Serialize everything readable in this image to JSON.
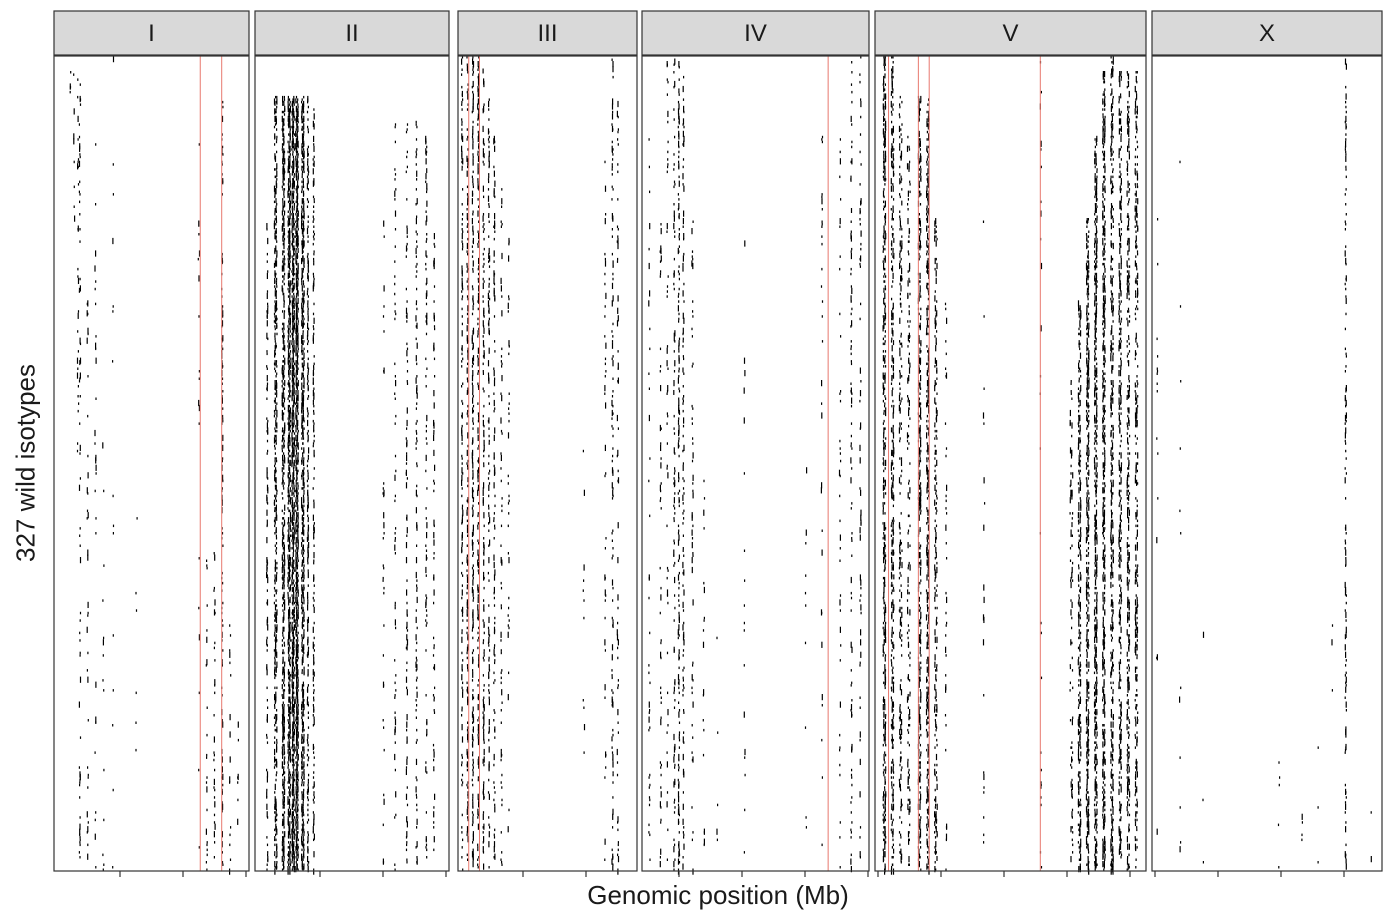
{
  "chart_data": {
    "type": "heatmap",
    "xlabel": "Genomic position (Mb)",
    "ylabel": "327 wild isotypes",
    "facets": [
      {
        "name": "I",
        "red_lines": [
          0.75,
          0.86
        ],
        "bands": [
          {
            "x": 0.08,
            "w": 0.005,
            "d": 0.25,
            "r": [
              0.0,
              0.05
            ]
          },
          {
            "x": 0.1,
            "w": 0.005,
            "d": 0.2,
            "r": [
              0.0,
              0.2
            ]
          },
          {
            "x": 0.12,
            "w": 0.005,
            "d": 0.2,
            "r": [
              0.0,
              0.5
            ]
          },
          {
            "x": 0.13,
            "w": 0.005,
            "d": 0.18,
            "r": [
              0.02,
              1.0
            ]
          },
          {
            "x": 0.17,
            "w": 0.004,
            "d": 0.12,
            "r": [
              0.3,
              1.0
            ]
          },
          {
            "x": 0.21,
            "w": 0.003,
            "d": 0.08,
            "r": [
              0.05,
              1.0
            ]
          },
          {
            "x": 0.25,
            "w": 0.003,
            "d": 0.06,
            "r": [
              0.4,
              1.0
            ]
          },
          {
            "x": 0.3,
            "w": 0.003,
            "d": 0.04,
            "r": [
              0.0,
              1.0
            ]
          },
          {
            "x": 0.42,
            "w": 0.003,
            "d": 0.03,
            "r": [
              0.5,
              1.0
            ]
          },
          {
            "x": 0.74,
            "w": 0.004,
            "d": 0.08,
            "r": [
              0.1,
              1.0
            ]
          },
          {
            "x": 0.78,
            "w": 0.005,
            "d": 0.18,
            "r": [
              0.6,
              1.0
            ]
          },
          {
            "x": 0.82,
            "w": 0.005,
            "d": 0.25,
            "r": [
              0.6,
              1.0
            ]
          },
          {
            "x": 0.86,
            "w": 0.005,
            "d": 0.3,
            "r": [
              0.05,
              1.0
            ]
          },
          {
            "x": 0.9,
            "w": 0.004,
            "d": 0.15,
            "r": [
              0.7,
              1.0
            ]
          },
          {
            "x": 0.94,
            "w": 0.004,
            "d": 0.12,
            "r": [
              0.8,
              1.0
            ]
          }
        ]
      },
      {
        "name": "II",
        "red_lines": [],
        "bands": [
          {
            "x": 0.06,
            "w": 0.01,
            "d": 0.35,
            "r": [
              0.2,
              1.0
            ]
          },
          {
            "x": 0.1,
            "w": 0.015,
            "d": 0.55,
            "r": [
              0.05,
              1.0
            ]
          },
          {
            "x": 0.14,
            "w": 0.015,
            "d": 0.65,
            "r": [
              0.05,
              1.0
            ]
          },
          {
            "x": 0.17,
            "w": 0.015,
            "d": 0.8,
            "r": [
              0.05,
              1.0
            ]
          },
          {
            "x": 0.19,
            "w": 0.015,
            "d": 0.85,
            "r": [
              0.05,
              1.0
            ]
          },
          {
            "x": 0.21,
            "w": 0.015,
            "d": 0.9,
            "r": [
              0.05,
              1.0
            ]
          },
          {
            "x": 0.24,
            "w": 0.012,
            "d": 0.75,
            "r": [
              0.05,
              1.0
            ]
          },
          {
            "x": 0.27,
            "w": 0.01,
            "d": 0.6,
            "r": [
              0.05,
              1.0
            ]
          },
          {
            "x": 0.3,
            "w": 0.01,
            "d": 0.45,
            "r": [
              0.05,
              1.0
            ]
          },
          {
            "x": 0.66,
            "w": 0.006,
            "d": 0.15,
            "r": [
              0.2,
              1.0
            ]
          },
          {
            "x": 0.72,
            "w": 0.006,
            "d": 0.2,
            "r": [
              0.08,
              1.0
            ]
          },
          {
            "x": 0.78,
            "w": 0.006,
            "d": 0.3,
            "r": [
              0.08,
              1.0
            ]
          },
          {
            "x": 0.83,
            "w": 0.006,
            "d": 0.3,
            "r": [
              0.08,
              1.0
            ]
          },
          {
            "x": 0.88,
            "w": 0.006,
            "d": 0.25,
            "r": [
              0.1,
              1.0
            ]
          },
          {
            "x": 0.92,
            "w": 0.005,
            "d": 0.2,
            "r": [
              0.2,
              1.0
            ]
          }
        ]
      },
      {
        "name": "III",
        "red_lines": [
          0.06,
          0.12
        ],
        "bands": [
          {
            "x": 0.02,
            "w": 0.008,
            "d": 0.4,
            "r": [
              0.0,
              1.0
            ]
          },
          {
            "x": 0.05,
            "w": 0.008,
            "d": 0.5,
            "r": [
              0.0,
              1.0
            ]
          },
          {
            "x": 0.08,
            "w": 0.008,
            "d": 0.55,
            "r": [
              0.0,
              1.0
            ]
          },
          {
            "x": 0.11,
            "w": 0.008,
            "d": 0.5,
            "r": [
              0.0,
              1.0
            ]
          },
          {
            "x": 0.14,
            "w": 0.007,
            "d": 0.45,
            "r": [
              0.0,
              1.0
            ]
          },
          {
            "x": 0.17,
            "w": 0.006,
            "d": 0.4,
            "r": [
              0.05,
              1.0
            ]
          },
          {
            "x": 0.2,
            "w": 0.006,
            "d": 0.3,
            "r": [
              0.1,
              1.0
            ]
          },
          {
            "x": 0.24,
            "w": 0.005,
            "d": 0.2,
            "r": [
              0.15,
              1.0
            ]
          },
          {
            "x": 0.28,
            "w": 0.004,
            "d": 0.12,
            "r": [
              0.2,
              1.0
            ]
          },
          {
            "x": 0.7,
            "w": 0.004,
            "d": 0.08,
            "r": [
              0.4,
              1.0
            ]
          },
          {
            "x": 0.82,
            "w": 0.004,
            "d": 0.12,
            "r": [
              0.1,
              1.0
            ]
          },
          {
            "x": 0.86,
            "w": 0.005,
            "d": 0.35,
            "r": [
              0.0,
              1.0
            ]
          },
          {
            "x": 0.89,
            "w": 0.004,
            "d": 0.2,
            "r": [
              0.05,
              1.0
            ]
          }
        ]
      },
      {
        "name": "IV",
        "red_lines": [
          0.82
        ],
        "bands": [
          {
            "x": 0.03,
            "w": 0.004,
            "d": 0.12,
            "r": [
              0.1,
              1.0
            ]
          },
          {
            "x": 0.08,
            "w": 0.004,
            "d": 0.18,
            "r": [
              0.2,
              1.0
            ]
          },
          {
            "x": 0.11,
            "w": 0.004,
            "d": 0.15,
            "r": [
              0.0,
              1.0
            ]
          },
          {
            "x": 0.14,
            "w": 0.005,
            "d": 0.3,
            "r": [
              0.0,
              1.0
            ]
          },
          {
            "x": 0.16,
            "w": 0.005,
            "d": 0.45,
            "r": [
              0.0,
              1.0
            ]
          },
          {
            "x": 0.18,
            "w": 0.005,
            "d": 0.3,
            "r": [
              0.0,
              1.0
            ]
          },
          {
            "x": 0.22,
            "w": 0.004,
            "d": 0.15,
            "r": [
              0.2,
              1.0
            ]
          },
          {
            "x": 0.27,
            "w": 0.004,
            "d": 0.12,
            "r": [
              0.5,
              1.0
            ]
          },
          {
            "x": 0.33,
            "w": 0.004,
            "d": 0.08,
            "r": [
              0.7,
              1.0
            ]
          },
          {
            "x": 0.45,
            "w": 0.003,
            "d": 0.05,
            "r": [
              0.2,
              1.0
            ]
          },
          {
            "x": 0.72,
            "w": 0.004,
            "d": 0.08,
            "r": [
              0.5,
              1.0
            ]
          },
          {
            "x": 0.79,
            "w": 0.004,
            "d": 0.12,
            "r": [
              0.1,
              1.0
            ]
          },
          {
            "x": 0.87,
            "w": 0.004,
            "d": 0.18,
            "r": [
              0.1,
              1.0
            ]
          },
          {
            "x": 0.92,
            "w": 0.004,
            "d": 0.25,
            "r": [
              0.0,
              1.0
            ]
          },
          {
            "x": 0.96,
            "w": 0.004,
            "d": 0.2,
            "r": [
              0.0,
              1.0
            ]
          }
        ]
      },
      {
        "name": "V",
        "red_lines": [
          0.05,
          0.16,
          0.2,
          0.61
        ],
        "bands": [
          {
            "x": 0.03,
            "w": 0.01,
            "d": 0.55,
            "r": [
              0.0,
              1.0
            ]
          },
          {
            "x": 0.06,
            "w": 0.01,
            "d": 0.45,
            "r": [
              0.0,
              1.0
            ]
          },
          {
            "x": 0.09,
            "w": 0.008,
            "d": 0.3,
            "r": [
              0.05,
              1.0
            ]
          },
          {
            "x": 0.12,
            "w": 0.008,
            "d": 0.25,
            "r": [
              0.1,
              1.0
            ]
          },
          {
            "x": 0.16,
            "w": 0.01,
            "d": 0.45,
            "r": [
              0.05,
              1.0
            ]
          },
          {
            "x": 0.19,
            "w": 0.01,
            "d": 0.5,
            "r": [
              0.05,
              1.0
            ]
          },
          {
            "x": 0.22,
            "w": 0.008,
            "d": 0.3,
            "r": [
              0.2,
              1.0
            ]
          },
          {
            "x": 0.26,
            "w": 0.006,
            "d": 0.15,
            "r": [
              0.3,
              1.0
            ]
          },
          {
            "x": 0.4,
            "w": 0.004,
            "d": 0.08,
            "r": [
              0.2,
              1.0
            ]
          },
          {
            "x": 0.61,
            "w": 0.004,
            "d": 0.06,
            "r": [
              0.0,
              1.0
            ]
          },
          {
            "x": 0.72,
            "w": 0.008,
            "d": 0.25,
            "r": [
              0.4,
              1.0
            ]
          },
          {
            "x": 0.75,
            "w": 0.01,
            "d": 0.5,
            "r": [
              0.3,
              1.0
            ]
          },
          {
            "x": 0.78,
            "w": 0.012,
            "d": 0.6,
            "r": [
              0.2,
              1.0
            ]
          },
          {
            "x": 0.81,
            "w": 0.012,
            "d": 0.65,
            "r": [
              0.1,
              1.0
            ]
          },
          {
            "x": 0.84,
            "w": 0.012,
            "d": 0.6,
            "r": [
              0.02,
              1.0
            ]
          },
          {
            "x": 0.87,
            "w": 0.01,
            "d": 0.5,
            "r": [
              0.0,
              1.0
            ]
          },
          {
            "x": 0.9,
            "w": 0.01,
            "d": 0.45,
            "r": [
              0.02,
              1.0
            ]
          },
          {
            "x": 0.93,
            "w": 0.01,
            "d": 0.4,
            "r": [
              0.02,
              1.0
            ]
          },
          {
            "x": 0.96,
            "w": 0.01,
            "d": 0.35,
            "r": [
              0.02,
              1.0
            ]
          }
        ]
      },
      {
        "name": "X",
        "red_lines": [],
        "bands": [
          {
            "x": 0.02,
            "w": 0.004,
            "d": 0.06,
            "r": [
              0.2,
              1.0
            ]
          },
          {
            "x": 0.12,
            "w": 0.004,
            "d": 0.05,
            "r": [
              0.05,
              1.0
            ]
          },
          {
            "x": 0.22,
            "w": 0.003,
            "d": 0.04,
            "r": [
              0.7,
              1.0
            ]
          },
          {
            "x": 0.36,
            "w": 0.003,
            "d": 0.04,
            "r": [
              0.8,
              1.0
            ]
          },
          {
            "x": 0.45,
            "w": 0.003,
            "d": 0.04,
            "r": [
              0.85,
              1.0
            ]
          },
          {
            "x": 0.55,
            "w": 0.003,
            "d": 0.04,
            "r": [
              0.85,
              1.0
            ]
          },
          {
            "x": 0.65,
            "w": 0.003,
            "d": 0.06,
            "r": [
              0.9,
              1.0
            ]
          },
          {
            "x": 0.72,
            "w": 0.003,
            "d": 0.05,
            "r": [
              0.85,
              1.0
            ]
          },
          {
            "x": 0.78,
            "w": 0.003,
            "d": 0.05,
            "r": [
              0.7,
              1.0
            ]
          },
          {
            "x": 0.84,
            "w": 0.004,
            "d": 0.35,
            "r": [
              0.0,
              1.0
            ]
          },
          {
            "x": 0.88,
            "w": 0.003,
            "d": 0.06,
            "r": [
              0.9,
              1.0
            ]
          },
          {
            "x": 0.95,
            "w": 0.003,
            "d": 0.06,
            "r": [
              0.88,
              1.0
            ]
          }
        ]
      }
    ],
    "n_rows": 327,
    "colors": {
      "snp": "#000000",
      "red_line": "#e8786e",
      "strip": "#d9d9d9",
      "panel_border": "#333333"
    }
  }
}
